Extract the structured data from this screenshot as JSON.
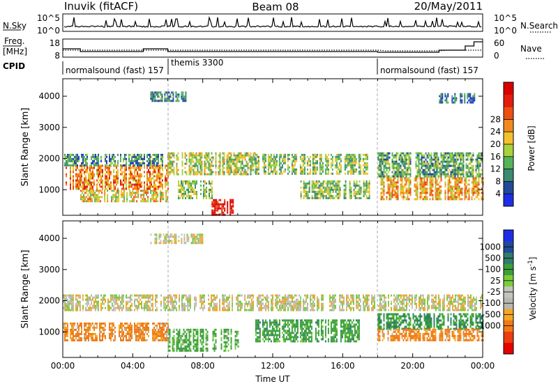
{
  "header": {
    "station": "Inuvik (fitACF)",
    "beam": "Beam 08",
    "date": "20/May/2011"
  },
  "aux_labels": {
    "nsky": "N.Sky",
    "nsearch": "N.Search",
    "freq_line1": "Freq.",
    "freq_line2": "[MHz]",
    "nave": "Nave",
    "cpid": "CPID",
    "noise_ticks": [
      "10^5",
      "10^0"
    ],
    "freq_ticks": [
      "18",
      "8"
    ],
    "nave_ticks": [
      "60",
      "0"
    ]
  },
  "cpid_segments": [
    {
      "start": "00:00",
      "end": "06:00",
      "label": "normalsound (fast) 157"
    },
    {
      "start": "06:00",
      "end": "18:00",
      "label": "themis 3300"
    },
    {
      "start": "18:00",
      "end": "24:00",
      "label": "normalsound (fast) 157"
    }
  ],
  "chart_data": [
    {
      "type": "heatmap",
      "name": "power",
      "xlabel": "",
      "ylabel": "Slant Range [km]",
      "xlim": [
        "00:00",
        "24:00"
      ],
      "ylim": [
        180,
        4560
      ],
      "y_ticks": [
        "1000",
        "2000",
        "3000",
        "4000"
      ],
      "colorbar": {
        "label": "Power [dB]",
        "colors": [
          "#1f2ee6",
          "#23499a",
          "#3c8a6f",
          "#55b35a",
          "#a8d13c",
          "#f2c12e",
          "#f08a1e",
          "#ec4e14",
          "#e41c10",
          "#d80000"
        ],
        "ticks": [
          "4",
          "8",
          "12",
          "16",
          "20",
          "24",
          "28"
        ]
      },
      "bands": [
        {
          "start": 0.0,
          "end": 6.0,
          "lo": 1000,
          "hi": 1800,
          "value": 22
        },
        {
          "start": 0.0,
          "end": 6.0,
          "lo": 1800,
          "hi": 2150,
          "value": 10
        },
        {
          "start": 1.0,
          "end": 6.0,
          "lo": 600,
          "hi": 1000,
          "value": 18
        },
        {
          "start": 6.0,
          "end": 11.0,
          "lo": 1500,
          "hi": 2200,
          "value": 16
        },
        {
          "start": 6.5,
          "end": 8.5,
          "lo": 700,
          "hi": 1300,
          "value": 14
        },
        {
          "start": 8.5,
          "end": 9.8,
          "lo": 180,
          "hi": 700,
          "value": 29
        },
        {
          "start": 11.0,
          "end": 17.5,
          "lo": 1500,
          "hi": 2150,
          "value": 14
        },
        {
          "start": 13.5,
          "end": 17.5,
          "lo": 700,
          "hi": 1300,
          "value": 14
        },
        {
          "start": 18.0,
          "end": 24.0,
          "lo": 700,
          "hi": 1400,
          "value": 20
        },
        {
          "start": 18.0,
          "end": 24.0,
          "lo": 1400,
          "hi": 2200,
          "value": 12
        },
        {
          "start": 21.5,
          "end": 23.5,
          "lo": 3800,
          "hi": 4100,
          "value": 8
        },
        {
          "start": 5.0,
          "end": 7.0,
          "lo": 3850,
          "hi": 4150,
          "value": 10
        }
      ]
    },
    {
      "type": "heatmap",
      "name": "velocity",
      "xlabel": "Time UT",
      "ylabel": "Slant Range [km]",
      "xlim": [
        "00:00",
        "24:00"
      ],
      "ylim": [
        180,
        4560
      ],
      "x_ticks": [
        "00:00",
        "04:00",
        "08:00",
        "12:00",
        "16:00",
        "20:00",
        "00:00"
      ],
      "y_ticks": [
        "1000",
        "2000",
        "3000",
        "4000"
      ],
      "colorbar": {
        "label": "Velocity [m s^-1]",
        "colors": [
          "#e60000",
          "#ec3c10",
          "#f07a16",
          "#f5a623",
          "#b8b8b0",
          "#c4c4bc",
          "#7acc3c",
          "#3ba03a",
          "#2f7d6b",
          "#23499a",
          "#1f2ee6"
        ],
        "ticks": [
          "1000",
          "500",
          "100",
          "25",
          "-25",
          "-100",
          "-500",
          "-1000"
        ]
      },
      "bands": [
        {
          "start": 0.0,
          "end": 24.0,
          "lo": 1700,
          "hi": 2200,
          "value": 0
        },
        {
          "start": 0.0,
          "end": 6.0,
          "lo": 700,
          "hi": 1300,
          "value": -150
        },
        {
          "start": 6.0,
          "end": 10.0,
          "lo": 400,
          "hi": 1100,
          "value": 150
        },
        {
          "start": 11.0,
          "end": 17.0,
          "lo": 700,
          "hi": 1400,
          "value": 300
        },
        {
          "start": 18.0,
          "end": 24.0,
          "lo": 1100,
          "hi": 1600,
          "value": 400
        },
        {
          "start": 18.0,
          "end": 24.0,
          "lo": 700,
          "hi": 1100,
          "value": -200
        },
        {
          "start": 5.0,
          "end": 8.0,
          "lo": 3850,
          "hi": 4150,
          "value": 0
        }
      ]
    }
  ]
}
